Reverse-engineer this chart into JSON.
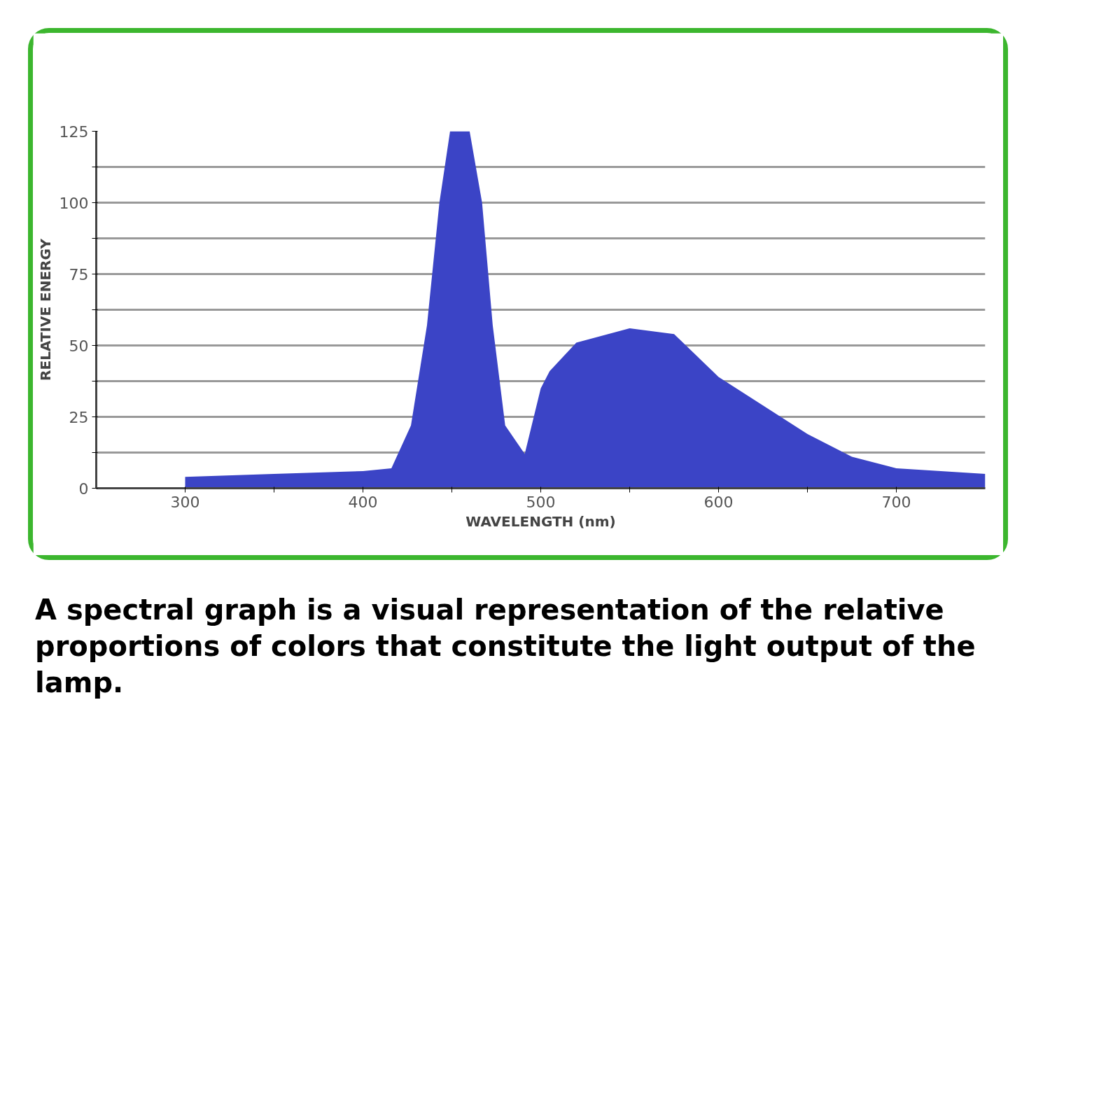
{
  "chart_data": {
    "type": "area",
    "xlabel": "WAVELENGTH (nm)",
    "ylabel": "RELATIVE ENERGY",
    "x": [
      300,
      350,
      400,
      416,
      427,
      436,
      443,
      449,
      460,
      467,
      473,
      480,
      491,
      500,
      505,
      520,
      550,
      575,
      590,
      600,
      625,
      650,
      675,
      700,
      725,
      750
    ],
    "series": [
      {
        "color": "#3b44c6",
        "values": [
          4,
          5,
          6,
          7,
          22,
          57,
          100,
          125,
          125,
          100,
          57,
          22,
          12,
          35,
          41,
          51,
          56,
          54,
          45,
          39,
          29,
          19,
          11,
          7,
          6,
          5
        ]
      }
    ],
    "xlim": [
      250,
      750
    ],
    "ylim": [
      0,
      125
    ],
    "xticks": [
      300,
      {
        "value": 350,
        "label": null
      },
      400,
      {
        "value": 450,
        "label": null
      },
      500,
      {
        "value": 550,
        "label": null
      },
      600,
      {
        "value": 650,
        "label": null
      },
      700
    ],
    "yticks": [
      0,
      {
        "value": 12.5,
        "label": null
      },
      25,
      {
        "value": 37.5,
        "label": null
      },
      50,
      {
        "value": 62.5,
        "label": null
      },
      75,
      {
        "value": 87.5,
        "label": null
      },
      100,
      {
        "value": 112.5,
        "label": null
      },
      125
    ],
    "grid": "y",
    "annotations": [
      "A spectral graph is a visual representation of the relative proportions of colors that constitute the light output of the lamp."
    ]
  }
}
